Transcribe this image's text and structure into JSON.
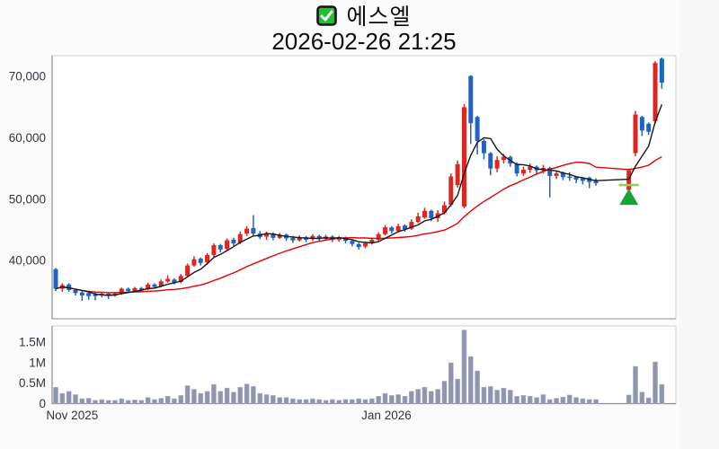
{
  "chart_data": {
    "type": "candlestick",
    "title": "에스엘",
    "title_icon": "checked-checkbox-icon",
    "subtitle": "2026-02-26 21:25",
    "price_axis": {
      "tick_values": [
        70000,
        60000,
        50000,
        40000
      ],
      "tick_labels": [
        "70,000",
        "60,000",
        "50,000",
        "40,000"
      ],
      "domain": [
        30500,
        73400
      ]
    },
    "volume_axis": {
      "tick_values_millions": [
        1.5,
        1.0,
        0.5,
        0
      ],
      "tick_labels": [
        "1.5M",
        "1M",
        "0.5M",
        "0"
      ],
      "max_millions": 1.9
    },
    "x_axis": {
      "labels": [
        {
          "text": "Nov 2025",
          "slot": 2.5
        },
        {
          "text": "Jan 2026",
          "slot": 50.2
        }
      ]
    },
    "series": {
      "columns": [
        "open",
        "high",
        "low",
        "close",
        "volume_m"
      ],
      "note": "null entries = non-trading holiday gap before the last six sessions",
      "candles": [
        [
          38600,
          38800,
          35000,
          35400,
          0.4
        ],
        [
          35400,
          36300,
          34900,
          36000,
          0.25
        ],
        [
          36100,
          36300,
          34900,
          35200,
          0.3
        ],
        [
          35200,
          35400,
          34300,
          34700,
          0.22
        ],
        [
          34800,
          35000,
          33400,
          34300,
          0.12
        ],
        [
          34700,
          34900,
          33600,
          34200,
          0.13
        ],
        [
          34500,
          34900,
          33500,
          34200,
          0.08
        ],
        [
          34300,
          34800,
          34000,
          34600,
          0.1
        ],
        [
          34600,
          34800,
          33700,
          34300,
          0.08
        ],
        [
          34300,
          34900,
          34100,
          34600,
          0.08
        ],
        [
          34600,
          35600,
          34400,
          35400,
          0.12
        ],
        [
          35400,
          35600,
          34700,
          35000,
          0.08
        ],
        [
          35000,
          35700,
          34800,
          35500,
          0.09
        ],
        [
          35500,
          35700,
          34900,
          35200,
          0.08
        ],
        [
          35300,
          36400,
          35200,
          36100,
          0.15
        ],
        [
          36100,
          36300,
          35400,
          35700,
          0.1
        ],
        [
          35800,
          36900,
          35600,
          36600,
          0.13
        ],
        [
          36600,
          37600,
          36400,
          37000,
          0.18
        ],
        [
          36900,
          37100,
          36100,
          36400,
          0.12
        ],
        [
          36500,
          37800,
          36300,
          37500,
          0.2
        ],
        [
          37500,
          39500,
          37300,
          39200,
          0.44
        ],
        [
          39200,
          40700,
          39000,
          40200,
          0.35
        ],
        [
          40300,
          40500,
          39200,
          39600,
          0.25
        ],
        [
          39700,
          41200,
          39500,
          40900,
          0.3
        ],
        [
          40900,
          42800,
          40600,
          42500,
          0.47
        ],
        [
          42500,
          42700,
          41300,
          41800,
          0.3
        ],
        [
          41900,
          43600,
          41700,
          43300,
          0.38
        ],
        [
          43400,
          43700,
          42400,
          42800,
          0.28
        ],
        [
          42900,
          44700,
          42700,
          44300,
          0.4
        ],
        [
          44400,
          45600,
          44000,
          45200,
          0.48
        ],
        [
          45300,
          47400,
          44100,
          44400,
          0.42
        ],
        [
          44400,
          44800,
          43500,
          43800,
          0.25
        ],
        [
          43900,
          44700,
          43400,
          44400,
          0.22
        ],
        [
          44400,
          44600,
          43300,
          43700,
          0.2
        ],
        [
          43700,
          44500,
          43500,
          44200,
          0.15
        ],
        [
          44200,
          44400,
          43200,
          43600,
          0.15
        ],
        [
          43700,
          44000,
          42900,
          43300,
          0.12
        ],
        [
          43300,
          44100,
          43100,
          43800,
          0.1
        ],
        [
          43800,
          44000,
          43000,
          43400,
          0.1
        ],
        [
          43500,
          44300,
          43200,
          44000,
          0.12
        ],
        [
          44000,
          44200,
          43100,
          43500,
          0.1
        ],
        [
          43500,
          44200,
          43300,
          43900,
          0.08
        ],
        [
          43900,
          44100,
          43000,
          43400,
          0.1
        ],
        [
          43400,
          44000,
          43100,
          43800,
          0.08
        ],
        [
          43800,
          43900,
          42800,
          43200,
          0.1
        ],
        [
          43200,
          43400,
          42300,
          42700,
          0.1
        ],
        [
          42700,
          42900,
          41800,
          42200,
          0.12
        ],
        [
          42300,
          43100,
          42000,
          42800,
          0.1
        ],
        [
          42800,
          43700,
          42600,
          43400,
          0.12
        ],
        [
          43400,
          44600,
          43200,
          44300,
          0.18
        ],
        [
          44300,
          45800,
          44100,
          45400,
          0.25
        ],
        [
          45400,
          45600,
          44400,
          44800,
          0.2
        ],
        [
          44800,
          46000,
          44600,
          45600,
          0.22
        ],
        [
          45700,
          45900,
          44700,
          45100,
          0.18
        ],
        [
          45200,
          46700,
          45000,
          46300,
          0.3
        ],
        [
          46300,
          47800,
          46100,
          47200,
          0.35
        ],
        [
          47000,
          48600,
          46800,
          48100,
          0.4
        ],
        [
          48100,
          48300,
          46400,
          46900,
          0.3
        ],
        [
          46900,
          48200,
          46300,
          47700,
          0.35
        ],
        [
          47800,
          49600,
          47500,
          49000,
          0.55
        ],
        [
          49100,
          54200,
          48800,
          53700,
          1.0
        ],
        [
          52300,
          56300,
          51900,
          55700,
          0.6
        ],
        [
          48800,
          65500,
          48500,
          65000,
          1.8
        ],
        [
          70100,
          70200,
          59000,
          62400,
          1.15
        ],
        [
          63400,
          63600,
          57300,
          59500,
          0.8
        ],
        [
          59500,
          59800,
          56500,
          57500,
          0.4
        ],
        [
          57500,
          57700,
          53900,
          55000,
          0.42
        ],
        [
          55000,
          57000,
          54400,
          56400,
          0.33
        ],
        [
          56400,
          57400,
          55800,
          56900,
          0.38
        ],
        [
          56900,
          57100,
          55300,
          55800,
          0.33
        ],
        [
          55800,
          56000,
          53700,
          54200,
          0.18
        ],
        [
          54200,
          55300,
          53800,
          54800,
          0.2
        ],
        [
          54800,
          55800,
          54300,
          55300,
          0.18
        ],
        [
          55300,
          55500,
          54000,
          54700,
          0.15
        ],
        [
          54700,
          55600,
          54200,
          55100,
          0.22
        ],
        [
          55100,
          55300,
          50300,
          53800,
          0.1
        ],
        [
          53800,
          54600,
          53300,
          54200,
          0.13
        ],
        [
          54300,
          54500,
          53100,
          53600,
          0.16
        ],
        [
          53700,
          54400,
          53000,
          53500,
          0.21
        ],
        [
          53600,
          53800,
          52600,
          53200,
          0.15
        ],
        [
          53400,
          53600,
          52400,
          53000,
          0.12
        ],
        [
          53500,
          53700,
          51800,
          52800,
          0.1
        ],
        [
          53000,
          53400,
          52200,
          52600,
          0.1
        ],
        null,
        null,
        null,
        null,
        [
          51500,
          55000,
          51200,
          54700,
          0.21
        ],
        [
          57500,
          64400,
          57000,
          63800,
          0.91
        ],
        [
          63400,
          63600,
          60300,
          61200,
          0.28
        ],
        [
          62300,
          62500,
          60500,
          61000,
          0.14
        ],
        [
          62700,
          72500,
          62300,
          72200,
          1.02
        ],
        [
          72900,
          73100,
          68000,
          69000,
          0.47
        ]
      ]
    },
    "moving_averages": [
      {
        "name": "long",
        "period": 20,
        "color": "#e60000"
      },
      {
        "name": "short",
        "period": 5,
        "color": "#161616"
      }
    ],
    "marker": {
      "type": "buy-signal-up-triangle",
      "slot": 87,
      "price": 52300,
      "line_color": "#8fd054",
      "fill": "#17a437"
    },
    "colors": {
      "up": "#e2231f",
      "down": "#1f63c5",
      "volume_bar": "#8e95b0",
      "volume_bar_edge": "#aab0c4",
      "axis_text": "#33333f",
      "plot_border": "#cfcfcf",
      "axis_line": "#8c8c8c",
      "plot_bg": "#ffffff",
      "checkbox_green": "#21bf30",
      "checkbox_border": "#141414"
    }
  }
}
